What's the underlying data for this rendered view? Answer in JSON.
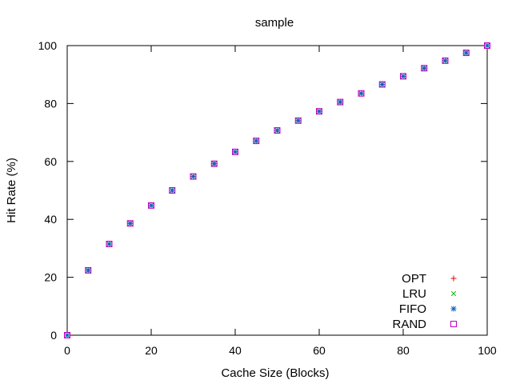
{
  "chart_data": {
    "type": "scatter",
    "title": "sample",
    "xlabel": "Cache Size (Blocks)",
    "ylabel": "Hit Rate (%)",
    "xlim": [
      0,
      100
    ],
    "ylim": [
      0,
      100
    ],
    "xticks": [
      0,
      20,
      40,
      60,
      80,
      100
    ],
    "yticks": [
      0,
      20,
      40,
      60,
      80,
      100
    ],
    "grid": false,
    "legend_position": "bottom-right",
    "x": [
      0,
      5,
      10,
      15,
      20,
      25,
      30,
      35,
      40,
      45,
      50,
      55,
      60,
      65,
      70,
      75,
      80,
      85,
      90,
      95,
      100
    ],
    "series": [
      {
        "name": "OPT",
        "marker": "plus",
        "color": "#e00000",
        "values": [
          0,
          22.4,
          31.5,
          38.6,
          44.8,
          50,
          54.8,
          59.2,
          63.3,
          67.1,
          70.7,
          74.1,
          77.3,
          80.5,
          83.5,
          86.6,
          89.4,
          92.2,
          94.8,
          97.5,
          100
        ]
      },
      {
        "name": "LRU",
        "marker": "cross",
        "color": "#00b000",
        "values": [
          0,
          22.4,
          31.5,
          38.6,
          44.8,
          50,
          54.8,
          59.2,
          63.3,
          67.1,
          70.7,
          74.1,
          77.3,
          80.5,
          83.5,
          86.6,
          89.4,
          92.2,
          94.8,
          97.5,
          100
        ]
      },
      {
        "name": "FIFO",
        "marker": "star",
        "color": "#1060c0",
        "values": [
          0,
          22.4,
          31.5,
          38.6,
          44.8,
          50,
          54.8,
          59.2,
          63.3,
          67.1,
          70.7,
          74.1,
          77.3,
          80.5,
          83.5,
          86.6,
          89.4,
          92.2,
          94.8,
          97.5,
          100
        ]
      },
      {
        "name": "RAND",
        "marker": "square",
        "color": "#c000c0",
        "values": [
          0,
          22.4,
          31.5,
          38.6,
          44.8,
          50,
          54.8,
          59.2,
          63.3,
          67.1,
          70.7,
          74.1,
          77.3,
          80.5,
          83.5,
          86.6,
          89.4,
          92.2,
          94.8,
          97.5,
          100
        ]
      }
    ]
  }
}
